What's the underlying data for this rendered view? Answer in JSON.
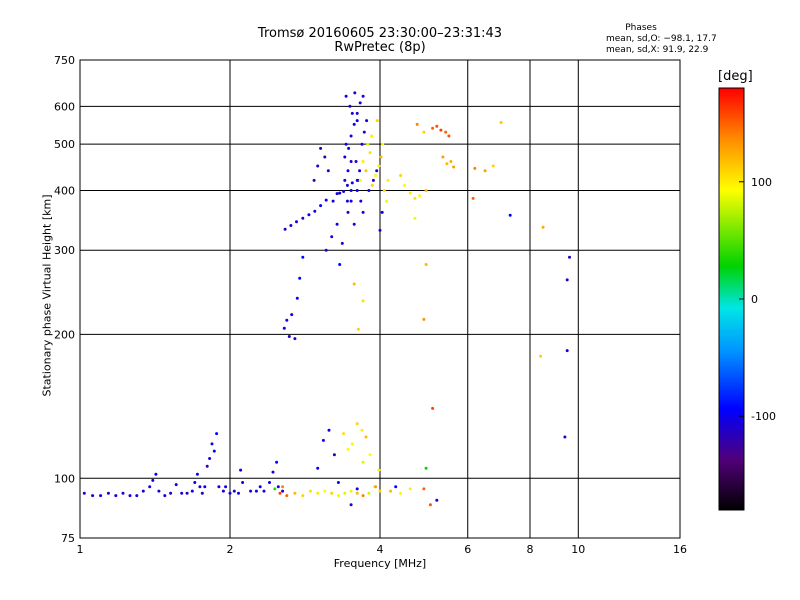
{
  "chart_data": {
    "type": "scatter",
    "title": "Tromsø 20160605 23:30:00–23:31:43",
    "subtitle": "RwPretec (8p)",
    "xlabel": "Frequency [MHz]",
    "ylabel": "Stationary phase Virtual Height [km]",
    "x_scale": "log",
    "y_scale": "log",
    "xlim": [
      1,
      16
    ],
    "ylim": [
      75,
      750
    ],
    "x_ticks": [
      "1",
      "2",
      "4",
      "6",
      "8",
      "10",
      "16"
    ],
    "x_tick_values": [
      1,
      2,
      4,
      6,
      8,
      10,
      16
    ],
    "y_ticks": [
      "75",
      "100",
      "200",
      "300",
      "400",
      "500",
      "600",
      "750"
    ],
    "y_tick_values": [
      75,
      100,
      200,
      300,
      400,
      500,
      600,
      750
    ],
    "grid_x": [
      2,
      4,
      6,
      8,
      10
    ],
    "grid_y": [
      100,
      200,
      300,
      400,
      500,
      600
    ],
    "grid": true,
    "phase_stats": {
      "heading": "Phases",
      "line1": "mean, sd,O: −98.1, 17.7",
      "line2": "mean, sd,X:  91.9, 22.9"
    },
    "colorbar": {
      "label": "[deg]",
      "range": [
        -180,
        180
      ],
      "ticks": [
        "100",
        "0",
        "-100"
      ],
      "tick_values": [
        100,
        0,
        -100
      ]
    },
    "series": [
      {
        "points": [
          [
            1.02,
            93,
            -105
          ],
          [
            1.06,
            92,
            -110
          ],
          [
            1.1,
            92,
            -100
          ],
          [
            1.14,
            93,
            -108
          ],
          [
            1.18,
            92,
            -104
          ],
          [
            1.22,
            93,
            -112
          ],
          [
            1.26,
            92,
            -100
          ],
          [
            1.3,
            92,
            -106
          ],
          [
            1.34,
            94,
            -110
          ],
          [
            1.38,
            96,
            -98
          ],
          [
            1.4,
            99,
            -104
          ],
          [
            1.42,
            102,
            -96
          ],
          [
            1.44,
            94,
            -108
          ],
          [
            1.48,
            92,
            -102
          ],
          [
            1.52,
            93,
            -110
          ],
          [
            1.56,
            97,
            -100
          ],
          [
            1.6,
            93,
            -106
          ],
          [
            1.64,
            93,
            -112
          ],
          [
            1.68,
            94,
            -104
          ],
          [
            1.7,
            98,
            -100
          ],
          [
            1.72,
            102,
            -96
          ],
          [
            1.74,
            96,
            -108
          ],
          [
            1.76,
            93,
            -110
          ],
          [
            1.78,
            96,
            -104
          ],
          [
            1.8,
            106,
            -120
          ],
          [
            1.82,
            110,
            -110
          ],
          [
            1.84,
            118,
            -100
          ],
          [
            1.86,
            114,
            -96
          ],
          [
            1.88,
            124,
            -92
          ],
          [
            1.9,
            96,
            -106
          ],
          [
            1.94,
            94,
            -108
          ],
          [
            1.96,
            96,
            -102
          ],
          [
            2.0,
            93,
            -104
          ],
          [
            2.04,
            94,
            -110
          ],
          [
            2.08,
            93,
            -100
          ],
          [
            2.1,
            104,
            -96
          ],
          [
            2.12,
            98,
            -102
          ],
          [
            2.2,
            94,
            -106
          ],
          [
            2.26,
            94,
            -104
          ],
          [
            2.3,
            96,
            -98
          ],
          [
            2.34,
            94,
            -102
          ],
          [
            2.4,
            98,
            -104
          ],
          [
            2.44,
            103,
            -108
          ],
          [
            2.46,
            95,
            40
          ],
          [
            2.48,
            108,
            -92
          ],
          [
            2.5,
            96,
            -100
          ],
          [
            2.55,
            94,
            -98
          ],
          [
            2.57,
            206,
            -100
          ],
          [
            2.6,
            214,
            -106
          ],
          [
            2.63,
            198,
            -110
          ],
          [
            2.66,
            220,
            -102
          ],
          [
            2.7,
            196,
            -108
          ],
          [
            2.73,
            238,
            -96
          ],
          [
            2.76,
            262,
            -94
          ],
          [
            2.8,
            290,
            -90
          ],
          [
            2.58,
            332,
            -110
          ],
          [
            2.65,
            338,
            -112
          ],
          [
            2.72,
            344,
            -104
          ],
          [
            2.8,
            350,
            -108
          ],
          [
            2.88,
            356,
            -102
          ],
          [
            2.96,
            362,
            -106
          ],
          [
            3.04,
            372,
            -98
          ],
          [
            3.12,
            382,
            -100
          ],
          [
            3.22,
            380,
            -104
          ],
          [
            3.28,
            394,
            -110
          ],
          [
            3.32,
            395,
            -96
          ],
          [
            3.38,
            398,
            -108
          ],
          [
            3.44,
            410,
            -104
          ],
          [
            3.52,
            415,
            -92
          ],
          [
            3.6,
            420,
            -100
          ],
          [
            2.95,
            420,
            -118
          ],
          [
            3.0,
            450,
            -112
          ],
          [
            3.04,
            490,
            -116
          ],
          [
            3.1,
            470,
            -120
          ],
          [
            3.15,
            440,
            -110
          ],
          [
            3.4,
            470,
            -106
          ],
          [
            3.46,
            490,
            -104
          ],
          [
            3.5,
            520,
            -110
          ],
          [
            3.55,
            550,
            -100
          ],
          [
            3.6,
            580,
            -108
          ],
          [
            3.65,
            610,
            -104
          ],
          [
            3.7,
            630,
            -106
          ],
          [
            3.56,
            640,
            -102
          ],
          [
            3.42,
            630,
            -100
          ],
          [
            3.48,
            600,
            -112
          ],
          [
            3.42,
            500,
            -96
          ],
          [
            3.58,
            460,
            -108
          ],
          [
            3.62,
            420,
            -98
          ],
          [
            3.66,
            380,
            -106
          ],
          [
            3.7,
            360,
            -110
          ],
          [
            3.55,
            340,
            -104
          ],
          [
            3.45,
            360,
            -112
          ],
          [
            3.5,
            380,
            -100
          ],
          [
            3.6,
            400,
            -94
          ],
          [
            3.64,
            440,
            -104
          ],
          [
            3.68,
            500,
            -102
          ],
          [
            3.72,
            530,
            -110
          ],
          [
            3.76,
            560,
            -100
          ],
          [
            3.6,
            560,
            -98
          ],
          [
            3.52,
            580,
            -106
          ],
          [
            3.4,
            420,
            -108
          ],
          [
            3.45,
            440,
            -102
          ],
          [
            3.5,
            460,
            -114
          ],
          [
            3.44,
            380,
            -106
          ],
          [
            3.5,
            400,
            -100
          ],
          [
            3.12,
            300,
            -104
          ],
          [
            3.2,
            320,
            -108
          ],
          [
            3.28,
            340,
            -100
          ],
          [
            3.32,
            280,
            -96
          ],
          [
            3.36,
            310,
            -112
          ],
          [
            3.8,
            400,
            -102
          ],
          [
            3.88,
            420,
            -110
          ],
          [
            3.94,
            440,
            -104
          ],
          [
            4.0,
            330,
            -108
          ],
          [
            4.04,
            360,
            -96
          ],
          [
            3.0,
            105,
            -98
          ],
          [
            3.08,
            120,
            -104
          ],
          [
            3.16,
            126,
            -100
          ],
          [
            3.24,
            112,
            -108
          ],
          [
            3.3,
            98,
            -96
          ],
          [
            3.5,
            88,
            -110
          ],
          [
            3.6,
            95,
            -102
          ],
          [
            4.3,
            96,
            -98
          ],
          [
            5.2,
            90,
            -110
          ],
          [
            9.6,
            290,
            -112
          ],
          [
            9.5,
            185,
            -104
          ],
          [
            9.4,
            122,
            -108
          ],
          [
            9.5,
            260,
            -110
          ],
          [
            7.3,
            355,
            -96
          ]
        ]
      },
      {
        "points": [
          [
            2.52,
            93,
            160
          ],
          [
            2.6,
            92,
            150
          ],
          [
            2.7,
            93,
            120
          ],
          [
            2.8,
            92,
            110
          ],
          [
            2.9,
            94,
            105
          ],
          [
            3.0,
            93,
            100
          ],
          [
            3.1,
            94,
            95
          ],
          [
            3.2,
            93,
            110
          ],
          [
            3.3,
            92,
            90
          ],
          [
            3.4,
            93,
            85
          ],
          [
            3.5,
            94,
            100
          ],
          [
            3.6,
            93,
            120
          ],
          [
            3.7,
            92,
            140
          ],
          [
            3.8,
            93,
            80
          ],
          [
            3.9,
            96,
            95
          ],
          [
            4.0,
            94,
            110
          ],
          [
            4.2,
            94,
            120
          ],
          [
            4.4,
            93,
            90
          ],
          [
            4.6,
            95,
            100
          ],
          [
            2.55,
            96,
            140
          ],
          [
            3.52,
            118,
            90
          ],
          [
            3.6,
            130,
            110
          ],
          [
            3.68,
            126,
            100
          ],
          [
            3.75,
            122,
            120
          ],
          [
            3.82,
            112,
            95
          ],
          [
            3.7,
            108,
            85
          ],
          [
            3.92,
            96,
            130
          ],
          [
            3.98,
            104,
            100
          ],
          [
            3.38,
            124,
            105
          ],
          [
            3.45,
            115,
            95
          ],
          [
            3.86,
            410,
            110
          ],
          [
            3.92,
            430,
            95
          ],
          [
            3.98,
            450,
            100
          ],
          [
            4.02,
            470,
            120
          ],
          [
            4.08,
            400,
            105
          ],
          [
            4.12,
            380,
            90
          ],
          [
            3.78,
            500,
            85
          ],
          [
            3.85,
            520,
            100
          ],
          [
            3.95,
            560,
            110
          ],
          [
            4.05,
            500,
            95
          ],
          [
            3.82,
            480,
            105
          ],
          [
            3.7,
            460,
            100
          ],
          [
            3.75,
            440,
            115
          ],
          [
            3.65,
            420,
            90
          ],
          [
            4.15,
            420,
            100
          ],
          [
            4.4,
            430,
            110
          ],
          [
            4.48,
            410,
            95
          ],
          [
            4.6,
            395,
            100
          ],
          [
            4.7,
            385,
            105
          ],
          [
            4.8,
            390,
            95
          ],
          [
            4.95,
            400,
            120
          ],
          [
            5.1,
            540,
            150
          ],
          [
            5.2,
            545,
            155
          ],
          [
            5.3,
            535,
            160
          ],
          [
            5.42,
            530,
            150
          ],
          [
            5.5,
            520,
            155
          ],
          [
            5.35,
            470,
            130
          ],
          [
            5.45,
            455,
            120
          ],
          [
            5.55,
            460,
            125
          ],
          [
            5.62,
            448,
            130
          ],
          [
            6.2,
            445,
            140
          ],
          [
            6.5,
            440,
            130
          ],
          [
            6.75,
            450,
            110
          ],
          [
            7.0,
            555,
            115
          ],
          [
            6.15,
            385,
            150
          ],
          [
            4.75,
            550,
            140
          ],
          [
            4.9,
            530,
            110
          ],
          [
            8.5,
            335,
            125
          ],
          [
            8.4,
            180,
            110
          ],
          [
            4.9,
            215,
            135
          ],
          [
            4.95,
            280,
            120
          ],
          [
            4.7,
            350,
            90
          ],
          [
            3.55,
            255,
            120
          ],
          [
            3.62,
            205,
            110
          ],
          [
            3.7,
            235,
            105
          ],
          [
            5.1,
            140,
            160
          ],
          [
            4.9,
            95,
            150
          ],
          [
            4.95,
            105,
            30
          ],
          [
            5.05,
            88,
            155
          ]
        ]
      }
    ]
  }
}
